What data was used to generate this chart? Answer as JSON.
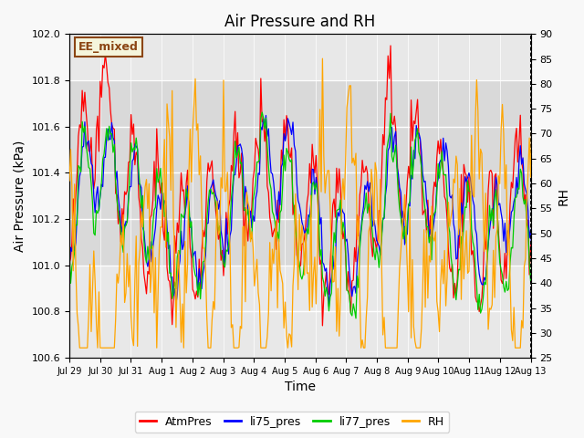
{
  "title": "Air Pressure and RH",
  "xlabel": "Time",
  "ylabel_left": "Air Pressure (kPa)",
  "ylabel_right": "RH",
  "annotation": "EE_mixed",
  "ylim_left": [
    100.6,
    102.0
  ],
  "ylim_right": [
    25,
    90
  ],
  "yticks_left": [
    100.6,
    100.8,
    101.0,
    101.2,
    101.4,
    101.6,
    101.8,
    102.0
  ],
  "yticks_right": [
    25,
    30,
    35,
    40,
    45,
    50,
    55,
    60,
    65,
    70,
    75,
    80,
    85,
    90
  ],
  "xtick_labels": [
    "Jul 29",
    "Jul 30",
    "Jul 31",
    "Aug 1",
    "Aug 2",
    "Aug 3",
    "Aug 4",
    "Aug 5",
    "Aug 6",
    "Aug 7",
    "Aug 8",
    "Aug 9",
    "Aug 10",
    "Aug 11",
    "Aug 12",
    "Aug 13"
  ],
  "colors": {
    "AtmPres": "#ff0000",
    "li75_pres": "#0000ff",
    "li77_pres": "#00cc00",
    "RH": "#ffa500"
  },
  "bg_color": "#e8e8e8",
  "legend_items": [
    "AtmPres",
    "li75_pres",
    "li77_pres",
    "RH"
  ],
  "grid_color": "#ffffff",
  "shaded_band_pressure": [
    101.0,
    101.8
  ]
}
